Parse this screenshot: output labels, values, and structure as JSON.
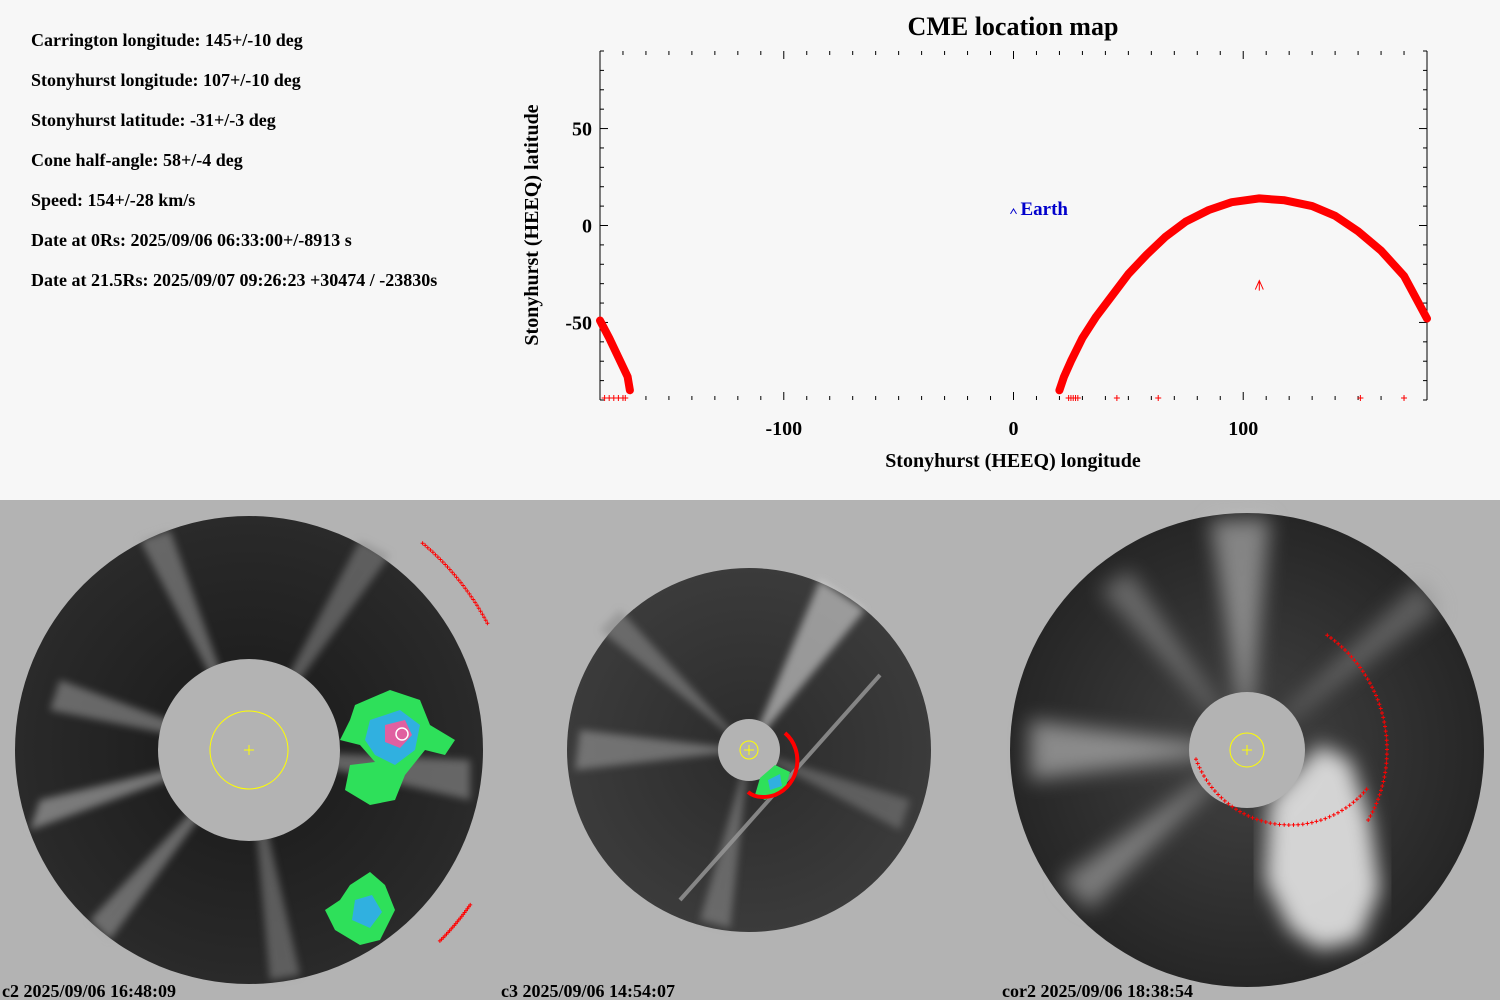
{
  "params": [
    "Carrington longitude: 145+/-10 deg",
    "Stonyhurst longitude: 107+/-10 deg",
    "Stonyhurst latitude: -31+/-3 deg",
    "Cone half-angle: 58+/-4 deg",
    "Speed: 154+/-28 km/s",
    "Date at 0Rs: 2025/09/06 06:33:00+/-8913 s",
    "Date at 21.5Rs: 2025/09/07 09:26:23 +30474 / -23830s"
  ],
  "chart_data": {
    "type": "line",
    "title": "CME location map",
    "xlabel": "Stonyhurst (HEEQ) longitude",
    "ylabel": "Stonyhurst (HEEQ) latitude",
    "xlim": [
      -180,
      180
    ],
    "ylim": [
      -90,
      90
    ],
    "xticks": [
      -100,
      0,
      100
    ],
    "yticks": [
      50,
      0,
      -50
    ],
    "colors": {
      "cme": "#ff0000",
      "earth": "#0000cc",
      "axes": "#000000"
    },
    "earth": {
      "label": "Earth",
      "x": 0,
      "y": 7
    },
    "cme_center": {
      "x": 107,
      "y": -31
    },
    "series": [
      {
        "values": [
          [
            20,
            -85
          ],
          [
            22,
            -78
          ],
          [
            25,
            -70
          ],
          [
            30,
            -58
          ],
          [
            36,
            -47
          ],
          [
            43,
            -36
          ],
          [
            50,
            -25
          ],
          [
            58,
            -15
          ],
          [
            66,
            -6
          ],
          [
            75,
            2
          ],
          [
            85,
            8
          ],
          [
            95,
            12
          ],
          [
            107,
            14
          ],
          [
            118,
            13
          ],
          [
            130,
            10
          ],
          [
            140,
            5
          ],
          [
            150,
            -3
          ],
          [
            160,
            -13
          ],
          [
            170,
            -26
          ],
          [
            180,
            -48
          ]
        ]
      },
      {
        "values": [
          [
            -180,
            -49
          ],
          [
            -176,
            -58
          ],
          [
            -172,
            -68
          ],
          [
            -168,
            -78
          ],
          [
            -167,
            -85
          ]
        ]
      }
    ],
    "bottom_markers": [
      -178,
      -176,
      -174,
      -172,
      -170,
      -169,
      24,
      25,
      26,
      27,
      28,
      45,
      63,
      151,
      170
    ]
  },
  "panels": [
    {
      "label": "c2 2025/09/06 16:48:09",
      "colors": {
        "disk": "#2e2e2e",
        "occulter": "#b3b3b3",
        "sun": "#ffff00",
        "cme": "#ff0000",
        "feature": "#22dd44"
      }
    },
    {
      "label": "c3 2025/09/06 14:54:07",
      "colors": {
        "disk": "#3a3a3a",
        "occulter": "#b3b3b3",
        "sun": "#ffff00",
        "cme": "#ff0000",
        "feature": "#22dd44"
      }
    },
    {
      "label": "cor2 2025/09/06 18:38:54",
      "colors": {
        "disk": "#353535",
        "occulter": "#b3b3b3",
        "sun": "#ffff00",
        "cme": "#ff0000"
      }
    }
  ]
}
